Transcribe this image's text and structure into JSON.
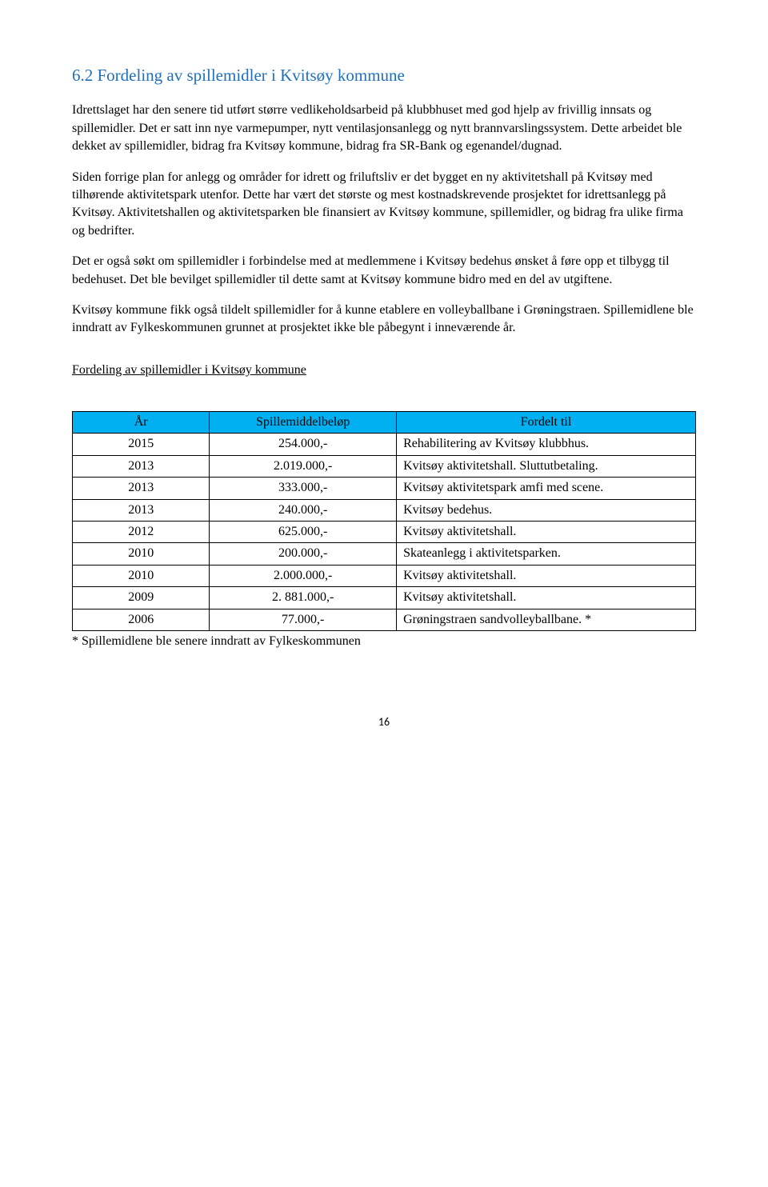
{
  "heading": "6.2 Fordeling av spillemidler i Kvitsøy kommune",
  "paragraphs": {
    "p1": "Idrettslaget har den senere tid utført større vedlikeholdsarbeid på klubbhuset med god hjelp av frivillig innsats og spillemidler. Det er satt inn nye varmepumper, nytt ventilasjonsanlegg og nytt brannvarslingssystem. Dette arbeidet ble dekket av spillemidler, bidrag fra Kvitsøy kommune, bidrag fra SR-Bank og egenandel/dugnad.",
    "p2": "Siden forrige plan for anlegg og områder for idrett og friluftsliv er det bygget en ny aktivitetshall på Kvitsøy med tilhørende aktivitetspark utenfor. Dette har vært det største og mest kostnadskrevende prosjektet for idrettsanlegg på Kvitsøy. Aktivitetshallen og aktivitetsparken ble finansiert av Kvitsøy kommune, spillemidler, og bidrag fra ulike firma og bedrifter.",
    "p3": "Det er også søkt om spillemidler i forbindelse med at medlemmene i Kvitsøy bedehus ønsket å føre opp et tilbygg til bedehuset. Det ble bevilget spillemidler til dette samt at Kvitsøy kommune bidro med en del av utgiftene.",
    "p4": "Kvitsøy kommune fikk også tildelt spillemidler for å kunne etablere en volleyballbane i Grøningstraen. Spillemidlene ble inndratt av Fylkeskommunen grunnet at prosjektet ikke ble påbegynt i inneværende år."
  },
  "subheading": "Fordeling av spillemidler i Kvitsøy kommune",
  "table": {
    "headers": {
      "c1": "År",
      "c2": "Spillemiddelbeløp",
      "c3": "Fordelt til"
    },
    "header_bg": "#00b0f0",
    "rows": [
      {
        "year": "2015",
        "amount": "254.000,-",
        "desc": "Rehabilitering av Kvitsøy klubbhus."
      },
      {
        "year": "2013",
        "amount": "2.019.000,-",
        "desc": "Kvitsøy aktivitetshall. Sluttutbetaling."
      },
      {
        "year": "2013",
        "amount": "333.000,-",
        "desc": "Kvitsøy aktivitetspark amfi med scene."
      },
      {
        "year": "2013",
        "amount": "240.000,-",
        "desc": "Kvitsøy bedehus."
      },
      {
        "year": "2012",
        "amount": "625.000,-",
        "desc": "Kvitsøy aktivitetshall."
      },
      {
        "year": "2010",
        "amount": "200.000,-",
        "desc": "Skateanlegg i aktivitetsparken."
      },
      {
        "year": "2010",
        "amount": "2.000.000,-",
        "desc": "Kvitsøy aktivitetshall."
      },
      {
        "year": "2009",
        "amount": "2. 881.000,-",
        "desc": "Kvitsøy aktivitetshall."
      },
      {
        "year": "2006",
        "amount": "77.000,-",
        "desc": "Grøningstraen sandvolleyballbane. *"
      }
    ]
  },
  "footnote": "* Spillemidlene ble senere inndratt av Fylkeskommunen",
  "page_number": "16"
}
